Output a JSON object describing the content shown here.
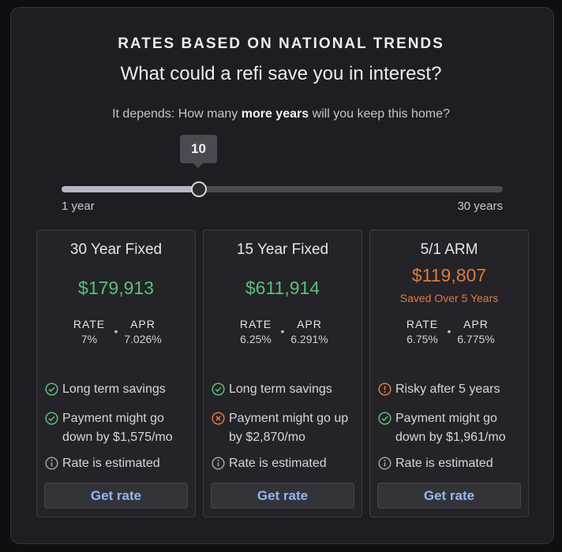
{
  "header": {
    "eyebrow": "RATES BASED ON NATIONAL TRENDS",
    "headline": "What could a refi save you in interest?",
    "question_before": "It depends: How many ",
    "question_bold": "more years",
    "question_after": " will you keep this home?"
  },
  "slider": {
    "value": "10",
    "value_num": 10,
    "min": 1,
    "max": 30,
    "min_label": "1 year",
    "max_label": "30 years"
  },
  "colors": {
    "positive": "#5cbf7a",
    "warning": "#e07a3f",
    "link": "#93b8ee"
  },
  "cards": [
    {
      "title": "30 Year Fixed",
      "amount": "$179,913",
      "rate_label": "RATE",
      "rate": "7%",
      "apr_label": "APR",
      "apr": "7.026%",
      "features": [
        {
          "icon": "check-circle-icon",
          "text": "Long term savings"
        },
        {
          "icon": "check-circle-icon",
          "text": "Payment might go down by $1,575/mo"
        },
        {
          "icon": "info-circle-icon",
          "text": "Rate is estimated"
        }
      ],
      "button": "Get rate"
    },
    {
      "title": "15 Year Fixed",
      "amount": "$611,914",
      "rate_label": "RATE",
      "rate": "6.25%",
      "apr_label": "APR",
      "apr": "6.291%",
      "features": [
        {
          "icon": "check-circle-icon",
          "text": "Long term savings"
        },
        {
          "icon": "x-circle-icon",
          "text": "Payment might go up by $2,870/mo"
        },
        {
          "icon": "info-circle-icon",
          "text": "Rate is estimated"
        }
      ],
      "button": "Get rate"
    },
    {
      "title": "5/1 ARM",
      "amount": "$119,807",
      "amount_sub": "Saved Over 5 Years",
      "rate_label": "RATE",
      "rate": "6.75%",
      "apr_label": "APR",
      "apr": "6.775%",
      "features": [
        {
          "icon": "warning-circle-icon",
          "text": "Risky after 5 years"
        },
        {
          "icon": "check-circle-icon",
          "text": "Payment might go down by $1,961/mo"
        },
        {
          "icon": "info-circle-icon",
          "text": "Rate is estimated"
        }
      ],
      "button": "Get rate"
    }
  ]
}
